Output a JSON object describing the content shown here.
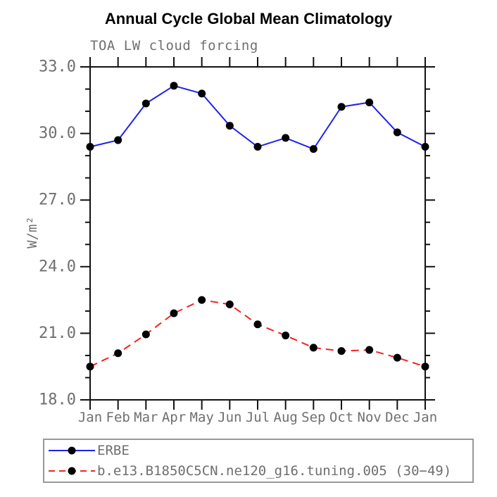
{
  "title": "Annual Cycle Global Mean Climatology",
  "chart_data": {
    "type": "line",
    "title": "Annual Cycle Global Mean Climatology",
    "subtitle": "TOA LW cloud forcing",
    "ylabel": "W/m²",
    "xlabel": "",
    "ylim": [
      18.0,
      33.0
    ],
    "y_major_ticks": [
      18,
      21,
      24,
      27,
      30,
      33
    ],
    "y_minor_step": 1,
    "grid": false,
    "legend_position": "bottom-left",
    "categories": [
      "Jan",
      "Feb",
      "Mar",
      "Apr",
      "May",
      "Jun",
      "Jul",
      "Aug",
      "Sep",
      "Oct",
      "Nov",
      "Dec",
      "Jan"
    ],
    "series": [
      {
        "name": "ERBE",
        "color": "#2020ee",
        "line_style": "solid",
        "marker": "filled-circle",
        "marker_color": "#000000",
        "values": [
          29.4,
          29.7,
          31.35,
          32.15,
          31.8,
          30.35,
          29.4,
          29.8,
          29.3,
          31.2,
          31.4,
          30.05,
          29.4
        ]
      },
      {
        "name": "b.e13.B1850C5CN.ne120_g16.tuning.005 (30−49)",
        "color": "#f52323",
        "line_style": "dashed",
        "marker": "filled-circle",
        "marker_color": "#000000",
        "values": [
          19.5,
          20.1,
          20.95,
          21.9,
          22.5,
          22.3,
          21.4,
          20.9,
          20.35,
          20.2,
          20.25,
          19.9,
          19.5
        ]
      }
    ],
    "colors": {
      "axis": "#111111",
      "tick_label": "#6f6f6f",
      "title": "#000000",
      "legend_border": "#999999"
    }
  }
}
